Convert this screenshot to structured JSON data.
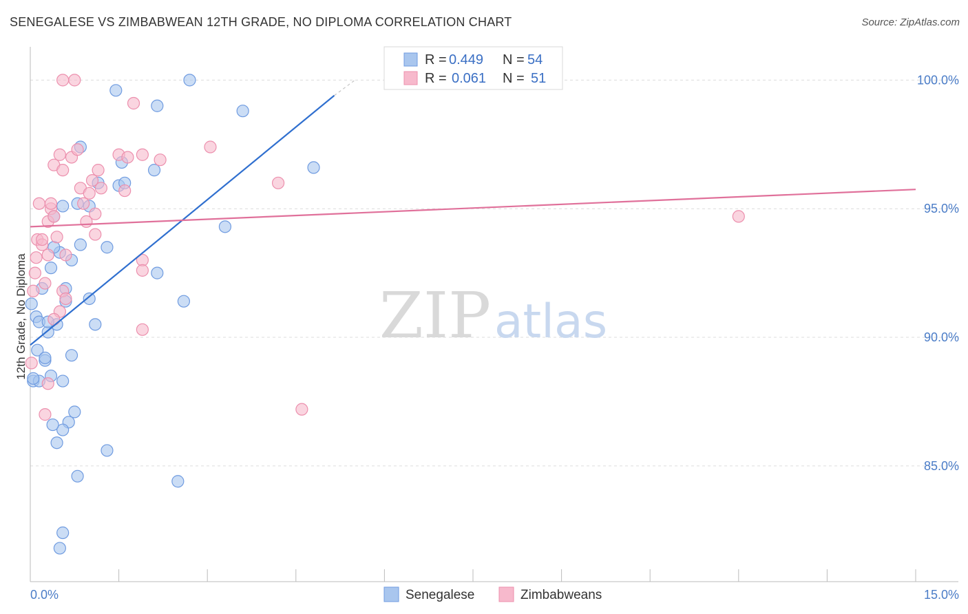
{
  "title": "SENEGALESE VS ZIMBABWEAN 12TH GRADE, NO DIPLOMA CORRELATION CHART",
  "source": "Source: ZipAtlas.com",
  "watermark": {
    "zip": "ZIP",
    "atlas": "atlas"
  },
  "chart_data": {
    "type": "scatter",
    "xlabel": "",
    "ylabel": "12th Grade, No Diploma",
    "xlim": [
      0,
      15
    ],
    "ylim": [
      80.5,
      101
    ],
    "x_tick_labels": [
      "0.0%",
      "15.0%"
    ],
    "y_ticks": [
      85,
      90,
      95,
      100
    ],
    "y_tick_labels": [
      "85.0%",
      "90.0%",
      "95.0%",
      "100.0%"
    ],
    "grid": true,
    "legend_position": "top-center",
    "colors": {
      "senegalese_fill": "#a9c6ee",
      "senegalese_stroke": "#6f9be0",
      "senegalese_line": "#2f6fcf",
      "zimbabwean_fill": "#f7b9cc",
      "zimbabwean_stroke": "#ec8fad",
      "zimbabwean_line": "#e0709a"
    },
    "legend": [
      {
        "r_label": "R =",
        "r_value": "0.449",
        "n_label": "N =",
        "n_value": "54"
      },
      {
        "r_label": "R =",
        "r_value": "0.061",
        "n_label": "N =",
        "n_value": "51"
      }
    ],
    "series": [
      {
        "name": "Senegalese",
        "trend": {
          "x": [
            0.0,
            5.15
          ],
          "y": [
            89.7,
            99.4
          ]
        },
        "points": [
          [
            0.02,
            91.3
          ],
          [
            0.1,
            90.8
          ],
          [
            0.15,
            90.6
          ],
          [
            0.12,
            89.5
          ],
          [
            0.05,
            88.3
          ],
          [
            0.2,
            91.9
          ],
          [
            0.25,
            89.1
          ],
          [
            0.3,
            90.2
          ],
          [
            0.35,
            88.5
          ],
          [
            0.45,
            90.5
          ],
          [
            0.55,
            88.3
          ],
          [
            0.6,
            91.9
          ],
          [
            0.7,
            89.3
          ],
          [
            0.75,
            87.1
          ],
          [
            0.65,
            86.7
          ],
          [
            0.55,
            86.4
          ],
          [
            0.38,
            86.6
          ],
          [
            0.45,
            85.9
          ],
          [
            0.8,
            84.6
          ],
          [
            0.55,
            82.4
          ],
          [
            0.5,
            81.8
          ],
          [
            0.35,
            92.7
          ],
          [
            0.5,
            93.3
          ],
          [
            0.7,
            93.0
          ],
          [
            1.0,
            91.5
          ],
          [
            0.85,
            93.6
          ],
          [
            1.3,
            93.5
          ],
          [
            1.1,
            90.5
          ],
          [
            1.3,
            85.6
          ],
          [
            0.4,
            94.7
          ],
          [
            0.55,
            95.1
          ],
          [
            0.8,
            95.2
          ],
          [
            1.0,
            95.1
          ],
          [
            0.85,
            97.4
          ],
          [
            1.15,
            96.0
          ],
          [
            1.5,
            95.9
          ],
          [
            1.55,
            96.8
          ],
          [
            1.6,
            96.0
          ],
          [
            1.45,
            99.6
          ],
          [
            2.1,
            96.5
          ],
          [
            2.15,
            99.0
          ],
          [
            2.15,
            92.5
          ],
          [
            2.6,
            91.4
          ],
          [
            2.5,
            84.4
          ],
          [
            2.7,
            100.0
          ],
          [
            3.3,
            94.3
          ],
          [
            3.6,
            98.8
          ],
          [
            4.8,
            96.6
          ],
          [
            0.6,
            91.4
          ],
          [
            0.3,
            90.6
          ],
          [
            0.25,
            89.2
          ],
          [
            0.15,
            88.3
          ],
          [
            0.05,
            88.4
          ],
          [
            0.4,
            93.5
          ]
        ]
      },
      {
        "name": "Zimbabweans",
        "trend": {
          "x": [
            0.0,
            15.0
          ],
          "y": [
            94.3,
            95.75
          ]
        },
        "points": [
          [
            0.02,
            89.0
          ],
          [
            0.05,
            91.8
          ],
          [
            0.08,
            92.5
          ],
          [
            0.1,
            93.1
          ],
          [
            0.12,
            93.8
          ],
          [
            0.15,
            95.2
          ],
          [
            0.2,
            93.6
          ],
          [
            0.25,
            92.1
          ],
          [
            0.3,
            94.5
          ],
          [
            0.3,
            93.2
          ],
          [
            0.35,
            95.0
          ],
          [
            0.4,
            96.7
          ],
          [
            0.5,
            97.1
          ],
          [
            0.55,
            96.5
          ],
          [
            0.4,
            94.7
          ],
          [
            0.45,
            93.9
          ],
          [
            0.5,
            91.0
          ],
          [
            0.55,
            91.8
          ],
          [
            0.6,
            91.5
          ],
          [
            0.7,
            97.0
          ],
          [
            0.8,
            97.3
          ],
          [
            0.85,
            95.8
          ],
          [
            0.9,
            95.2
          ],
          [
            0.95,
            94.5
          ],
          [
            1.0,
            95.6
          ],
          [
            1.05,
            96.1
          ],
          [
            1.1,
            94.8
          ],
          [
            1.1,
            94.0
          ],
          [
            1.2,
            95.8
          ],
          [
            1.15,
            96.5
          ],
          [
            1.5,
            97.1
          ],
          [
            1.6,
            95.7
          ],
          [
            1.65,
            97.0
          ],
          [
            1.75,
            99.1
          ],
          [
            1.9,
            97.1
          ],
          [
            1.9,
            93.0
          ],
          [
            1.9,
            92.6
          ],
          [
            1.9,
            90.3
          ],
          [
            2.2,
            96.9
          ],
          [
            0.55,
            100.0
          ],
          [
            0.75,
            100.0
          ],
          [
            3.05,
            97.4
          ],
          [
            4.2,
            96.0
          ],
          [
            4.6,
            87.2
          ],
          [
            12.0,
            94.7
          ],
          [
            0.25,
            87.0
          ],
          [
            0.3,
            88.2
          ],
          [
            0.4,
            90.7
          ],
          [
            0.2,
            93.8
          ],
          [
            0.6,
            93.2
          ],
          [
            0.35,
            95.2
          ]
        ]
      }
    ]
  }
}
